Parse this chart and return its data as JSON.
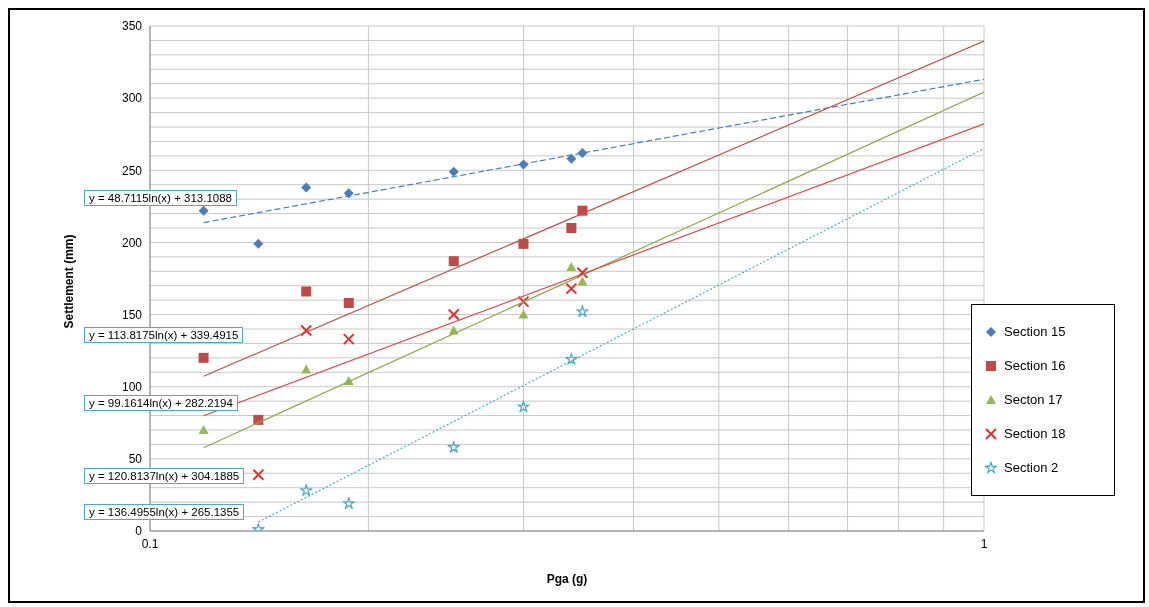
{
  "chart_data": {
    "type": "scatter",
    "xlabel": "Pga (g)",
    "ylabel": "Settlement (mm)",
    "log": "x",
    "xlim": [
      0.113,
      1
    ],
    "xticks": [
      {
        "value": 0.113,
        "label": "0.1"
      },
      {
        "value": 0.2,
        "label": null
      },
      {
        "value": 0.3,
        "label": null
      },
      {
        "value": 0.4,
        "label": null
      },
      {
        "value": 0.5,
        "label": null
      },
      {
        "value": 0.6,
        "label": null
      },
      {
        "value": 0.7,
        "label": null
      },
      {
        "value": 0.8,
        "label": null
      },
      {
        "value": 0.9,
        "label": null
      },
      1
    ],
    "ylim": [
      0,
      350
    ],
    "yticks": [
      0,
      {
        "value": 10,
        "label": null
      },
      {
        "value": 20,
        "label": null
      },
      {
        "value": 30,
        "label": null
      },
      {
        "value": 40,
        "label": null
      },
      50,
      {
        "value": 60,
        "label": null
      },
      {
        "value": 70,
        "label": null
      },
      {
        "value": 80,
        "label": null
      },
      {
        "value": 90,
        "label": null
      },
      100,
      {
        "value": 110,
        "label": null
      },
      {
        "value": 120,
        "label": null
      },
      {
        "value": 130,
        "label": null
      },
      {
        "value": 140,
        "label": null
      },
      150,
      {
        "value": 160,
        "label": null
      },
      {
        "value": 170,
        "label": null
      },
      {
        "value": 180,
        "label": null
      },
      {
        "value": 190,
        "label": null
      },
      200,
      {
        "value": 210,
        "label": null
      },
      {
        "value": 220,
        "label": null
      },
      {
        "value": 230,
        "label": null
      },
      {
        "value": 240,
        "label": null
      },
      250,
      {
        "value": 260,
        "label": null
      },
      {
        "value": 270,
        "label": null
      },
      {
        "value": 280,
        "label": null
      },
      {
        "value": 290,
        "label": null
      },
      300,
      {
        "value": 310,
        "label": null
      },
      {
        "value": 320,
        "label": null
      },
      {
        "value": 330,
        "label": null
      },
      {
        "value": 340,
        "label": null
      },
      350
    ],
    "grid": true,
    "legend": "right",
    "series": [
      {
        "name": "Section 15",
        "color": "#4a7ebb",
        "marker": "diamond",
        "x": [
          0.13,
          0.15,
          0.17,
          0.19,
          0.25,
          0.3,
          0.34,
          0.35
        ],
        "values": [
          222,
          199,
          238,
          234,
          249,
          254,
          258,
          262
        ]
      },
      {
        "name": "Section 16",
        "color": "#be4b48",
        "marker": "square",
        "x": [
          0.13,
          0.15,
          0.17,
          0.19,
          0.25,
          0.3,
          0.34,
          0.35
        ],
        "values": [
          120,
          77,
          166,
          158,
          187,
          199,
          210,
          222
        ]
      },
      {
        "name": "Secton 17",
        "color": "#98b954",
        "marker": "triangle",
        "x": [
          0.13,
          0.17,
          0.19,
          0.25,
          0.3,
          0.34,
          0.35
        ],
        "values": [
          70,
          112,
          104,
          139,
          150,
          183,
          173
        ]
      },
      {
        "name": "Section 18",
        "color": "#e03030",
        "marker": "cross",
        "x": [
          0.15,
          0.17,
          0.19,
          0.25,
          0.3,
          0.34,
          0.35
        ],
        "values": [
          39,
          139,
          133,
          150,
          159,
          168,
          179
        ]
      },
      {
        "name": "Section 2",
        "color": "#4bacc6",
        "marker": "star",
        "x": [
          0.15,
          0.17,
          0.19,
          0.25,
          0.3,
          0.34,
          0.35
        ],
        "values": [
          1,
          28,
          19,
          58,
          86,
          119,
          152
        ]
      },
      {
        "type": "line",
        "color": "#4a7ebb",
        "line_style": "dashed",
        "x": [
          0.13,
          1
        ],
        "values": [
          213.7,
          313.1
        ]
      },
      {
        "type": "line",
        "color": "#c0504d",
        "line_style": "solid",
        "x": [
          0.13,
          1
        ],
        "values": [
          107.3,
          339.5
        ]
      },
      {
        "type": "line",
        "color": "#8fa94a",
        "line_style": "solid",
        "x": [
          0.13,
          1
        ],
        "values": [
          57.7,
          304.2
        ]
      },
      {
        "type": "line",
        "color": "#e04848",
        "line_style": "solid",
        "x": [
          0.13,
          1
        ],
        "values": [
          79.9,
          282.2
        ]
      },
      {
        "type": "line",
        "color": "#4bacc6",
        "line_style": "dotted",
        "x": [
          0.15,
          1
        ],
        "values": [
          6.2,
          265.1
        ]
      }
    ],
    "annotations": [
      "y = 48.7115ln(x) + 313.1088",
      "y = 113.8175ln(x) + 339.4915",
      "y = 99.1614ln(x) + 282.2194",
      "y = 120.8137ln(x) + 304.1885",
      "y = 136.4955ln(x) + 265.1355"
    ]
  }
}
